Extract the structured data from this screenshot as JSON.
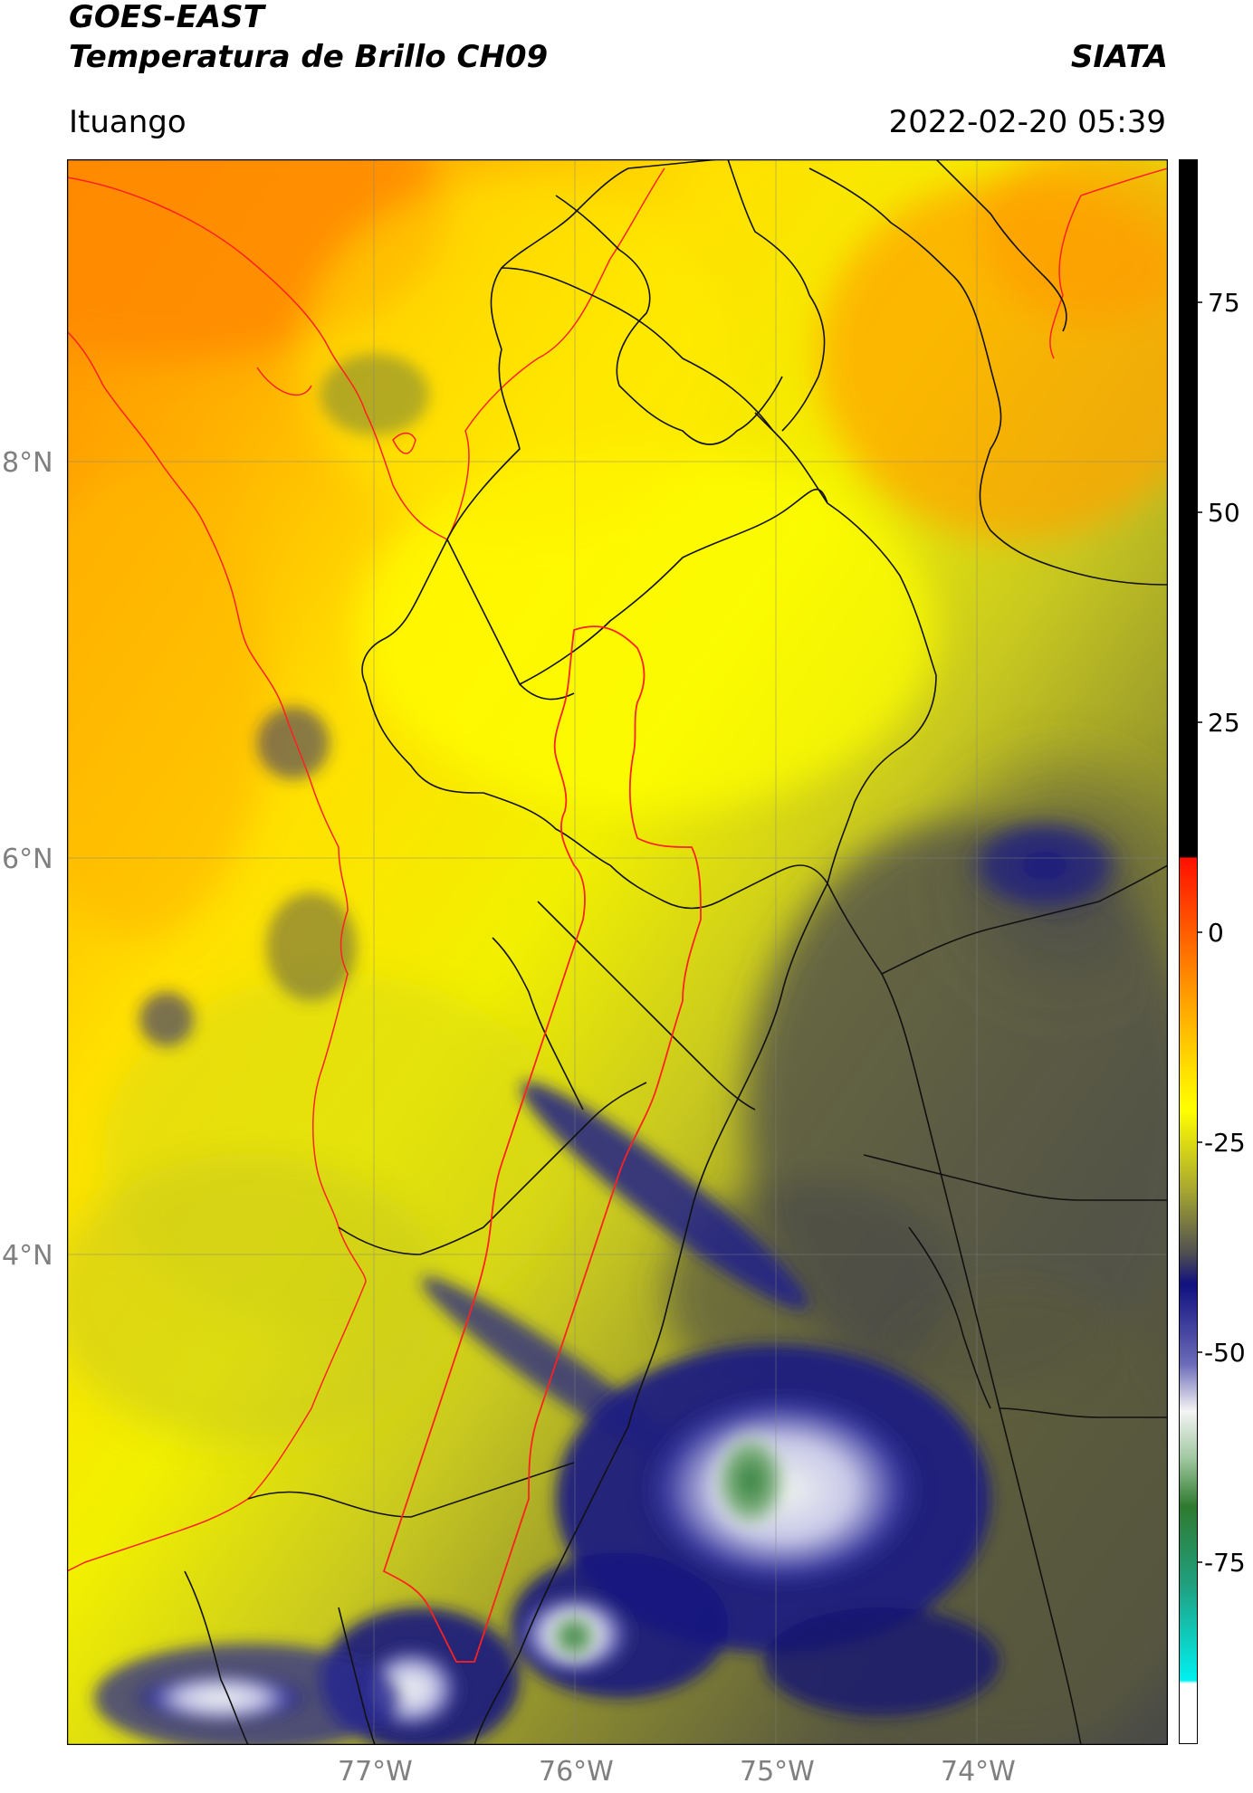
{
  "header": {
    "title_line1": "GOES-EAST",
    "title_line2": "Temperatura de Brillo CH09",
    "org": "SIATA",
    "location": "Ituango",
    "timestamp": "2022-02-20 05:39"
  },
  "map": {
    "lon_labels": [
      "77°W",
      "76°W",
      "75°W",
      "74°W"
    ],
    "lat_labels": [
      "8°N",
      "6°N",
      "4°N"
    ],
    "basin_outline_color": "#ff2020",
    "border_color": "#111111",
    "coastline_color": "#ff2020"
  },
  "colorbar": {
    "ticks": [
      "75",
      "50",
      "25",
      "0",
      "-25",
      "-50",
      "-75"
    ],
    "colors": {
      "top": "#000000",
      "warm": "#ff2000",
      "orange": "#ff9000",
      "yellow": "#ffff00",
      "olive": "#a0a030",
      "grey": "#4a4a4a",
      "navy": "#101070",
      "white": "#f4f4f4",
      "green": "#2f7a2f",
      "teal": "#20c0b0",
      "cyan": "#00f0f0"
    }
  }
}
